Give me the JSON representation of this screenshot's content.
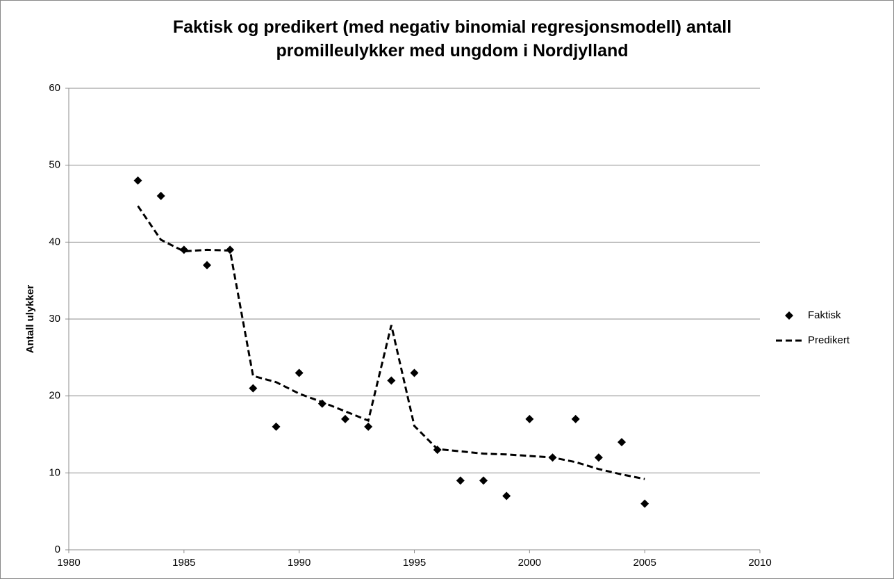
{
  "chart_data": {
    "type": "scatter",
    "title": "Faktisk og predikert (med negativ binomial regresjonsmodell) antall promilleulykker med ungdom i Nordjylland",
    "y_label": "Antall ulykker",
    "x": [
      1983,
      1984,
      1985,
      1986,
      1987,
      1988,
      1989,
      1990,
      1991,
      1992,
      1993,
      1994,
      1995,
      1996,
      1997,
      1998,
      1999,
      2000,
      2001,
      2002,
      2003,
      2004,
      2005
    ],
    "series": [
      {
        "name": "Faktisk",
        "color": "#000000",
        "style": "markers",
        "values": [
          48,
          46,
          39,
          37,
          39,
          21,
          16,
          23,
          19,
          17,
          16,
          22,
          23,
          13,
          9,
          9,
          7,
          17,
          12,
          17,
          12,
          14,
          6
        ]
      },
      {
        "name": "Predikert",
        "color": "#000000",
        "style": "dashed",
        "values": [
          44.7,
          40.3,
          38.8,
          39.0,
          38.9,
          22.6,
          21.8,
          20.3,
          19.2,
          18.0,
          16.8,
          29.2,
          16.1,
          13.1,
          12.8,
          12.5,
          12.4,
          12.2,
          12.0,
          11.4,
          10.5,
          9.8,
          9.2
        ]
      }
    ],
    "xlim": [
      1980,
      2010
    ],
    "xticks": [
      1980,
      1985,
      1990,
      1995,
      2000,
      2005,
      2010
    ],
    "ylim": [
      0,
      60
    ],
    "yticks": [
      0,
      10,
      20,
      30,
      40,
      50,
      60
    ],
    "grid": true,
    "legend": "right"
  }
}
